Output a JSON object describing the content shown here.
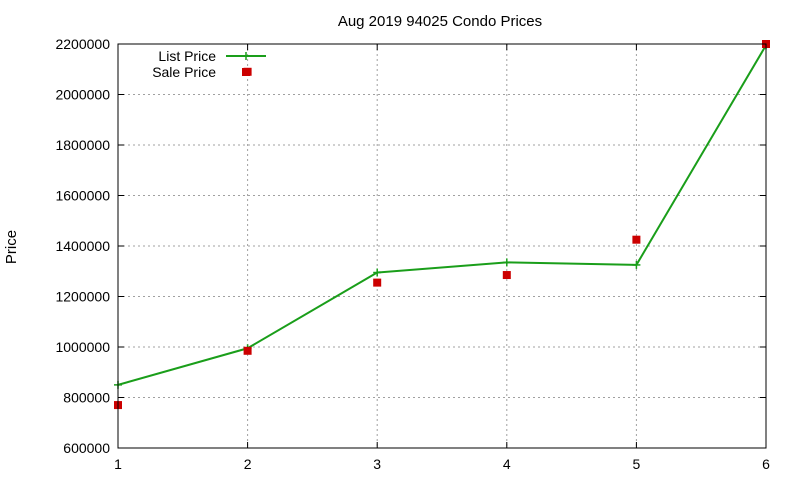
{
  "chart_data": {
    "type": "line",
    "title": "Aug 2019 94025 Condo Prices",
    "xlabel": "",
    "ylabel": "Price",
    "x": [
      1,
      2,
      3,
      4,
      5,
      6
    ],
    "xlim": [
      1,
      6
    ],
    "ylim": [
      600000,
      2200000
    ],
    "xticks": [
      "1",
      "2",
      "3",
      "4",
      "5",
      "6"
    ],
    "yticks": [
      "600000",
      "800000",
      "1000000",
      "1200000",
      "1400000",
      "1600000",
      "1800000",
      "2000000",
      "2200000"
    ],
    "grid": true,
    "legend_position": "top-left",
    "series": [
      {
        "name": "List Price",
        "style": "line-with-plus-markers",
        "color": "#1a9e1a",
        "values": [
          850000,
          995000,
          1295000,
          1335000,
          1325000,
          2195000
        ]
      },
      {
        "name": "Sale Price",
        "style": "square-markers",
        "color": "#cc0000",
        "values": [
          770000,
          985000,
          1255000,
          1285000,
          1425000,
          2200000
        ]
      }
    ],
    "extra_points": [
      {
        "series": "Sale Price",
        "x": 2,
        "y": 2090000
      }
    ]
  }
}
